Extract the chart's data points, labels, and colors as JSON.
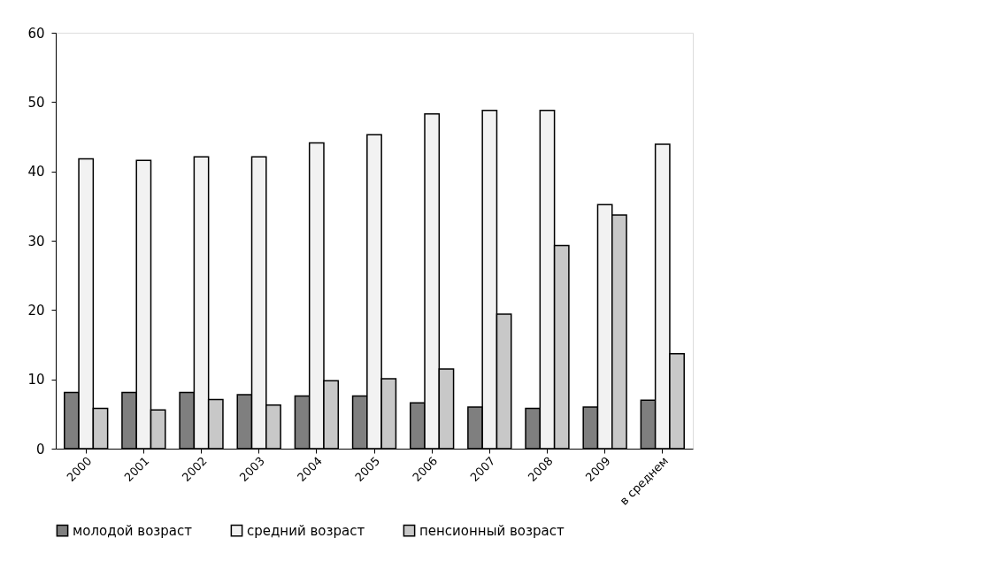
{
  "chart_data": {
    "type": "bar",
    "categories": [
      "2000",
      "2001",
      "2002",
      "2003",
      "2004",
      "2005",
      "2006",
      "2007",
      "2008",
      "2009",
      "в среднем"
    ],
    "series": [
      {
        "name": "молодой возраст",
        "color": "#7f7f7f",
        "values": [
          8.1,
          8.1,
          8.1,
          7.8,
          7.6,
          7.6,
          6.6,
          6.0,
          5.8,
          6.0,
          7.0
        ]
      },
      {
        "name": "средний возраст",
        "color": "#f2f2f2",
        "values": [
          41.8,
          41.6,
          42.1,
          42.1,
          44.1,
          45.3,
          48.3,
          48.8,
          48.8,
          35.2,
          43.9
        ]
      },
      {
        "name": "пенсионный возраст",
        "color": "#c8c8c8",
        "values": [
          5.8,
          5.6,
          7.1,
          6.3,
          9.8,
          10.1,
          11.5,
          19.4,
          29.3,
          33.7,
          13.7
        ]
      }
    ],
    "ylim": [
      0,
      60
    ],
    "yticks": [
      0,
      10,
      20,
      30,
      40,
      50,
      60
    ],
    "grid": false,
    "legend": "bottom"
  }
}
